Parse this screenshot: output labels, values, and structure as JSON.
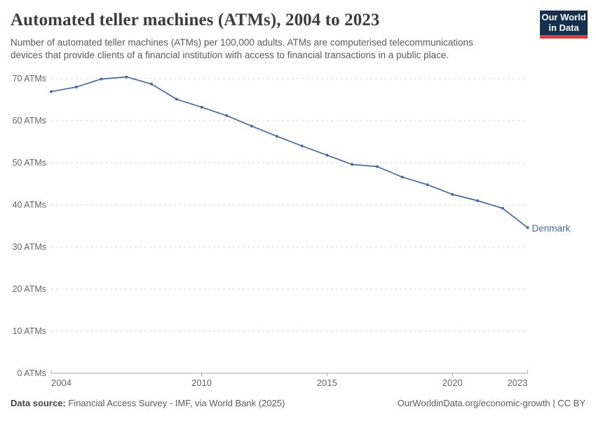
{
  "header": {
    "title": "Automated teller machines (ATMs), 2004 to 2023",
    "subtitle_lines": [
      "Number of automated teller machines (ATMs) per 100,000 adults. ATMs are computerised telecommunications",
      "devices that provide clients of a financial institution with access to financial transactions in a public place."
    ]
  },
  "logo": {
    "line1": "Our World",
    "line2": "in Data",
    "bg_color": "#15304e",
    "accent_color": "#dc3d43"
  },
  "chart_data": {
    "type": "line",
    "title": "Automated teller machines (ATMs), 2004 to 2023",
    "xlabel": "",
    "ylabel": "",
    "x": [
      2004,
      2005,
      2006,
      2007,
      2008,
      2009,
      2010,
      2011,
      2012,
      2013,
      2014,
      2015,
      2016,
      2017,
      2018,
      2019,
      2020,
      2021,
      2022,
      2023
    ],
    "series": [
      {
        "name": "Denmark",
        "color": "#4C6A9C",
        "values": [
          66.9,
          68.0,
          69.9,
          70.4,
          68.7,
          65.1,
          63.2,
          61.2,
          58.7,
          56.3,
          54.0,
          51.8,
          49.6,
          49.1,
          46.6,
          44.8,
          42.5,
          41.0,
          39.2,
          34.6
        ]
      }
    ],
    "ylim": [
      0,
      70
    ],
    "y_ticks": [
      0,
      10,
      20,
      30,
      40,
      50,
      60,
      70
    ],
    "y_tick_suffix": " ATMs",
    "x_ticks": [
      2004,
      2010,
      2015,
      2020,
      2023
    ],
    "grid": "horizontal-dashed",
    "legend_position": "line-end-label",
    "colors": {
      "gridline": "#d7d7d7",
      "axis_line": "#a5a5a5",
      "tick_label": "#666666"
    }
  },
  "footer": {
    "source_label": "Data source:",
    "source_text": " Financial Access Survey - IMF, via World Bank (2025)",
    "link_text": "OurWorldinData.org/economic-growth | CC BY"
  }
}
